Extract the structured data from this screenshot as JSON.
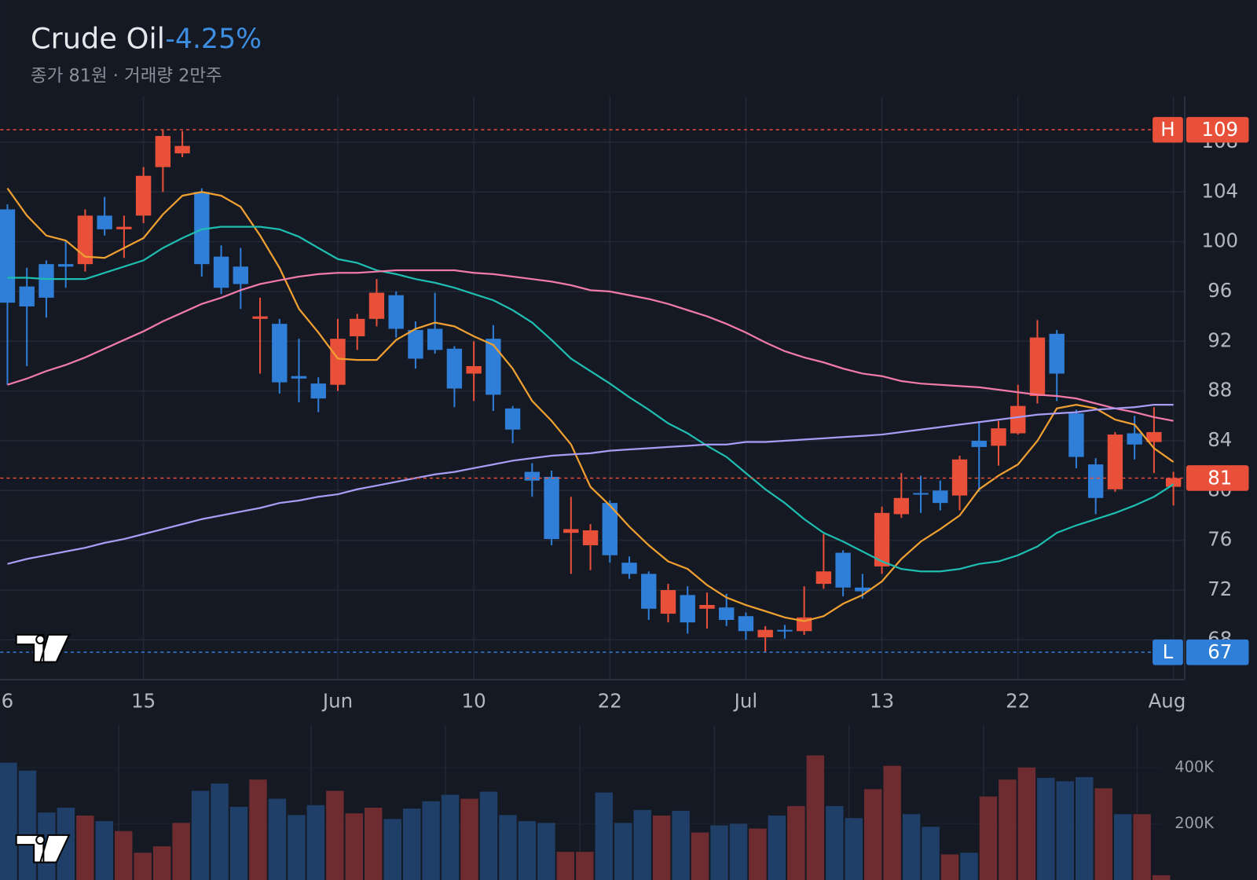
{
  "chart_data": [
    {
      "type": "candlestick",
      "title": "Crude Oil",
      "change": "-4.25%",
      "subtitle": "종가 81원 · 거래량 2만주",
      "categories": [
        "6",
        null,
        null,
        null,
        null,
        null,
        null,
        "15",
        null,
        null,
        null,
        null,
        null,
        null,
        null,
        null,
        null,
        "Jun",
        null,
        null,
        null,
        null,
        null,
        null,
        "10",
        null,
        null,
        null,
        null,
        null,
        null,
        "22",
        null,
        null,
        null,
        null,
        null,
        null,
        "Jul",
        null,
        null,
        null,
        null,
        null,
        null,
        "13",
        null,
        null,
        null,
        null,
        null,
        null,
        "22",
        null,
        null,
        null,
        null,
        null,
        null,
        null,
        "Aug"
      ],
      "open": [
        102.6,
        96.4,
        98.2,
        98.2,
        98.2,
        102.1,
        101,
        102.1,
        106,
        107.1,
        104,
        98.8,
        98,
        93.8,
        93.4,
        89.2,
        88.6,
        88.5,
        92.4,
        93.8,
        95.7,
        92.9,
        93,
        91.4,
        89.4,
        92.2,
        86.6,
        81.5,
        81.1,
        76.6,
        75.6,
        79,
        74.2,
        73.3,
        70.1,
        71.6,
        70.5,
        70.6,
        69.9,
        68.2,
        68.8,
        68.7,
        72.5,
        75,
        72.2,
        73.9,
        78.1,
        79.8,
        80,
        79.6,
        84,
        83.6,
        84.6,
        87.6,
        92.6,
        86.2,
        82.1,
        80.1,
        84.6,
        83.9,
        80.3
      ],
      "high": [
        103,
        97.9,
        98.5,
        100.1,
        102.6,
        103.6,
        102.1,
        106,
        109,
        108.9,
        104.3,
        99.7,
        99.5,
        95.5,
        93.8,
        92.2,
        89.1,
        93.8,
        94.2,
        97,
        96,
        93.6,
        95.9,
        91.6,
        92,
        93.3,
        86.8,
        82.2,
        81.6,
        79.5,
        77.3,
        79.2,
        74.7,
        73.5,
        72.5,
        72.3,
        71.8,
        71.7,
        70.2,
        69.1,
        69.2,
        72.3,
        76.5,
        75.2,
        73.3,
        78.7,
        81.4,
        81.2,
        80.8,
        82.8,
        85.5,
        85.6,
        88.5,
        93.7,
        92.9,
        86.5,
        82.6,
        84.7,
        86,
        86.7,
        81.5
      ],
      "low": [
        88.5,
        90,
        93.9,
        96.3,
        97.6,
        100.5,
        98.7,
        101.5,
        104,
        106.8,
        97.2,
        95.8,
        94.6,
        89.4,
        87.8,
        87.1,
        86.3,
        88,
        91.3,
        93.2,
        92.3,
        89.8,
        91,
        86.7,
        87.2,
        86.4,
        83.8,
        79.5,
        75.6,
        73.3,
        73.6,
        74.2,
        72.9,
        69.6,
        69.4,
        68.5,
        68.9,
        69.1,
        68,
        67,
        68.1,
        68.4,
        72.1,
        71.5,
        71.3,
        73.3,
        77.8,
        78.2,
        78.4,
        78.4,
        79.9,
        82,
        84.5,
        87,
        87.2,
        81.8,
        78.1,
        79.9,
        82.5,
        81.4,
        78.8
      ],
      "close": [
        95.1,
        94.8,
        95.5,
        98,
        102.1,
        101,
        101.2,
        105.3,
        108.5,
        107.7,
        98.2,
        96.3,
        96.6,
        94,
        88.7,
        89,
        87.4,
        92.2,
        93.8,
        95.9,
        93,
        90.6,
        91.3,
        88.2,
        90,
        87.7,
        84.9,
        80.8,
        76.1,
        76.9,
        76.8,
        74.8,
        73.3,
        70.5,
        72,
        69.4,
        70.8,
        69.6,
        68.7,
        68.8,
        68.7,
        69.8,
        73.5,
        72.2,
        71.9,
        78.2,
        79.4,
        79.7,
        79,
        82.5,
        83.5,
        85,
        86.8,
        92.3,
        89.4,
        82.7,
        79.4,
        84.5,
        83.7,
        84.7,
        81
      ],
      "up_color": "#e8503a",
      "down_color": "#2f7fd8",
      "lines": [
        {
          "color": "#f0a030",
          "values": [
            104.3,
            102.1,
            100.5,
            100.1,
            98.8,
            98.7,
            99.5,
            100.3,
            102.2,
            103.7,
            104,
            103.7,
            102.8,
            100.5,
            97.9,
            94.6,
            92.7,
            90.6,
            90.5,
            90.5,
            92.1,
            93,
            93.5,
            93.2,
            92.4,
            91.7,
            89.8,
            87.2,
            85.6,
            83.7,
            80.3,
            78.8,
            77.1,
            75.6,
            74.3,
            73.7,
            72.4,
            71.4,
            70.8,
            70.3,
            69.8,
            69.5,
            69.9,
            70.9,
            71.6,
            72.7,
            74.5,
            75.9,
            76.9,
            78,
            80.1,
            81.2,
            82.1,
            84,
            86.6,
            86.9,
            86.6,
            85.7,
            85.3,
            83.4,
            82.3
          ]
        },
        {
          "color": "#1fbcb0",
          "values": [
            97.1,
            97.1,
            97,
            97,
            97,
            97.5,
            98,
            98.5,
            99.5,
            100.3,
            101,
            101.2,
            101.2,
            101.2,
            101,
            100.4,
            99.5,
            98.6,
            98.3,
            97.7,
            97.4,
            97,
            96.7,
            96.3,
            95.8,
            95.3,
            94.5,
            93.5,
            92.1,
            90.6,
            89.6,
            88.6,
            87.5,
            86.5,
            85.4,
            84.6,
            83.6,
            82.7,
            81.4,
            80.1,
            79,
            77.7,
            76.6,
            75.9,
            75.1,
            74.3,
            73.7,
            73.5,
            73.5,
            73.7,
            74.1,
            74.3,
            74.8,
            75.5,
            76.6,
            77.2,
            77.7,
            78.2,
            78.8,
            79.5,
            80.5
          ]
        },
        {
          "color": "#f07aa8",
          "values": [
            88.5,
            89,
            89.6,
            90.1,
            90.7,
            91.4,
            92.1,
            92.8,
            93.6,
            94.3,
            95,
            95.5,
            96.1,
            96.6,
            96.9,
            97.2,
            97.4,
            97.5,
            97.5,
            97.6,
            97.7,
            97.7,
            97.7,
            97.7,
            97.5,
            97.4,
            97.2,
            97,
            96.8,
            96.5,
            96.1,
            96,
            95.7,
            95.4,
            95,
            94.5,
            94,
            93.4,
            92.7,
            91.9,
            91.2,
            90.7,
            90.3,
            89.8,
            89.4,
            89.2,
            88.8,
            88.6,
            88.5,
            88.4,
            88.3,
            88.1,
            87.9,
            87.7,
            87.6,
            87.4,
            87,
            86.6,
            86.3,
            85.9,
            85.6
          ]
        },
        {
          "color": "#a99cf5",
          "values": [
            74.1,
            74.5,
            74.8,
            75.1,
            75.4,
            75.8,
            76.1,
            76.5,
            76.9,
            77.3,
            77.7,
            78,
            78.3,
            78.6,
            79,
            79.2,
            79.5,
            79.7,
            80.1,
            80.4,
            80.7,
            81,
            81.3,
            81.5,
            81.8,
            82.1,
            82.4,
            82.6,
            82.8,
            82.9,
            83,
            83.2,
            83.3,
            83.4,
            83.5,
            83.6,
            83.7,
            83.7,
            83.9,
            83.9,
            84,
            84.1,
            84.2,
            84.3,
            84.4,
            84.5,
            84.7,
            84.9,
            85.1,
            85.3,
            85.5,
            85.7,
            85.9,
            86.1,
            86.2,
            86.3,
            86.5,
            86.6,
            86.7,
            86.9,
            86.9
          ]
        }
      ],
      "price_lines": [
        {
          "label": "H",
          "value": 109,
          "color": "#e8503a"
        },
        {
          "value": 81,
          "color": "#e8503a"
        },
        {
          "label": "L",
          "value": 67,
          "color": "#2f7fd8"
        }
      ],
      "ylim": [
        64.8,
        111.7
      ],
      "yticks": [
        68,
        72,
        76,
        80,
        84,
        88,
        92,
        96,
        100,
        104,
        108
      ],
      "grid": true
    },
    {
      "type": "bar",
      "values": [
        417000,
        389000,
        240000,
        257000,
        229000,
        209000,
        174000,
        97000,
        120000,
        203000,
        317000,
        343000,
        260000,
        357000,
        289000,
        231000,
        266000,
        317000,
        237000,
        257000,
        217000,
        254000,
        280000,
        303000,
        289000,
        314000,
        231000,
        209000,
        203000,
        100000,
        100000,
        311000,
        203000,
        249000,
        229000,
        246000,
        169000,
        194000,
        200000,
        183000,
        229000,
        263000,
        443000,
        263000,
        220000,
        323000,
        406000,
        234000,
        189000,
        91000,
        97000,
        297000,
        357000,
        400000,
        363000,
        351000,
        366000,
        326000,
        234000,
        234000,
        17000
      ],
      "up_color": "#6e2c30",
      "down_color": "#1f3f68",
      "ylim": [
        0,
        550000
      ],
      "yticks": [
        {
          "value": 200000,
          "label": "200K"
        },
        {
          "value": 400000,
          "label": "400K"
        }
      ]
    }
  ]
}
